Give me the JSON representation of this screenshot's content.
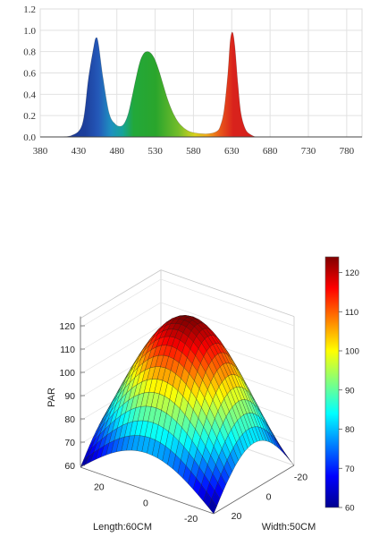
{
  "chart_data": [
    {
      "type": "area",
      "title": "",
      "xlabel": "",
      "ylabel": "",
      "xlim": [
        380,
        800
      ],
      "ylim": [
        0,
        1.2
      ],
      "x_ticks": [
        "380",
        "430",
        "480",
        "530",
        "580",
        "630",
        "680",
        "730",
        "780"
      ],
      "y_ticks": [
        "0.0",
        "0.2",
        "0.4",
        "0.6",
        "0.8",
        "1.0",
        "1.2"
      ],
      "grid": true,
      "fill": "wavelength-colored gradient (blue - green - red)",
      "series": [
        {
          "x": [
            405,
            420,
            435,
            443,
            450,
            453,
            456,
            462,
            470,
            478,
            485,
            490,
            495,
            500,
            505,
            510,
            515,
            520,
            525,
            530,
            535,
            540,
            545,
            550,
            555,
            560,
            565,
            570,
            575,
            580,
            590,
            600,
            610,
            615,
            620,
            625,
            628,
            631,
            634,
            638,
            642,
            648,
            655,
            662,
            670
          ],
          "y": [
            0.0,
            0.01,
            0.12,
            0.55,
            0.85,
            0.93,
            0.87,
            0.55,
            0.22,
            0.12,
            0.1,
            0.13,
            0.22,
            0.38,
            0.55,
            0.7,
            0.78,
            0.8,
            0.78,
            0.72,
            0.62,
            0.5,
            0.38,
            0.28,
            0.2,
            0.14,
            0.1,
            0.07,
            0.05,
            0.04,
            0.03,
            0.03,
            0.05,
            0.1,
            0.25,
            0.6,
            0.9,
            0.98,
            0.85,
            0.5,
            0.22,
            0.07,
            0.02,
            0.0,
            0.0
          ]
        }
      ]
    },
    {
      "type": "surface-3d",
      "title": "",
      "zlabel": "PAR",
      "xlabel": "Length:60CM",
      "ylabel": "Width:50CM",
      "z_ticks": [
        "60",
        "70",
        "80",
        "90",
        "100",
        "110",
        "120"
      ],
      "length_ticks": [
        "20",
        "0",
        "-20"
      ],
      "width_ticks": [
        "-20",
        "0",
        "20"
      ],
      "zlim": [
        60,
        124
      ],
      "colorbar_ticks": [
        "60",
        "70",
        "80",
        "90",
        "100",
        "110",
        "120"
      ],
      "colormap": "jet",
      "surface": {
        "description": "dome-shaped PAR distribution peaking near center",
        "center_value": 124,
        "corner_value": 60,
        "edge_midpoint_values": [
          76,
          80
        ]
      }
    }
  ]
}
